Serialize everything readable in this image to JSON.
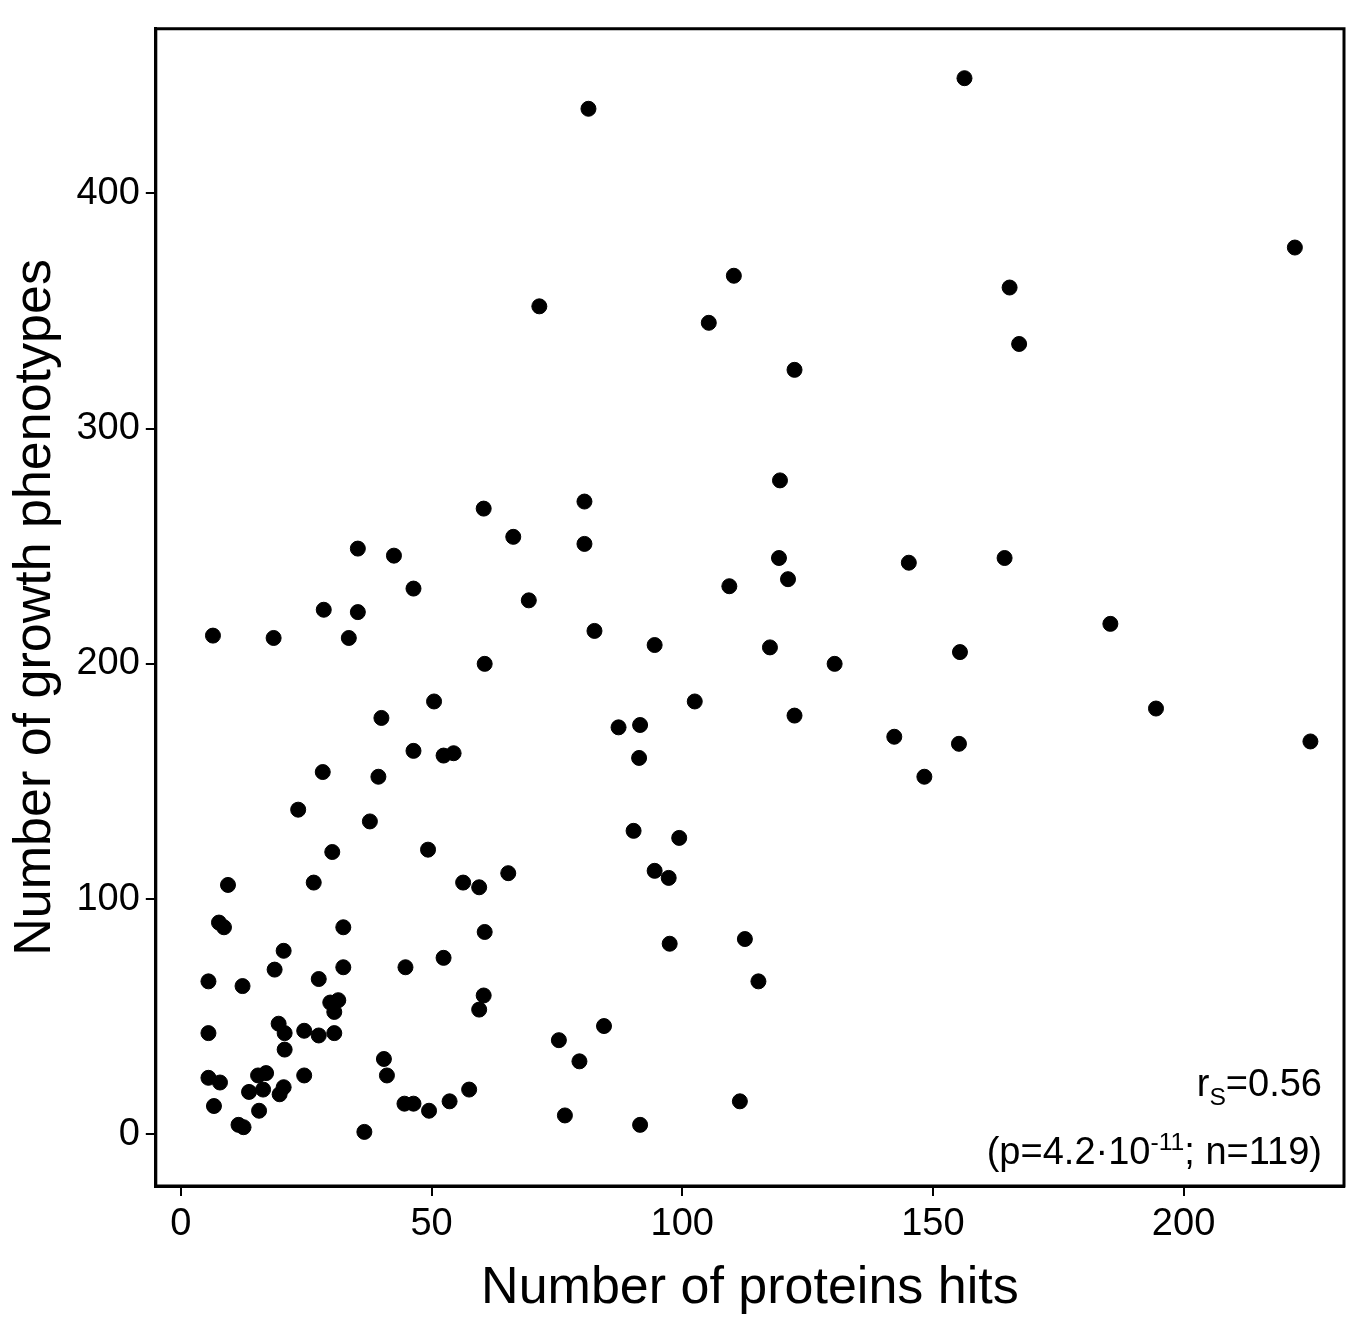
{
  "chart_data": {
    "type": "scatter",
    "xlabel": "Number of proteins hits",
    "ylabel": "Number of growth phenotypes",
    "annotations": [
      "r$_{S}$=0.56",
      "(p=4.2·10$^{-11}$; n=119)"
    ],
    "xlim": [
      -5,
      232
    ],
    "ylim": [
      -22,
      470
    ],
    "xticks": [
      0,
      50,
      100,
      150,
      200
    ],
    "yticks": [
      0,
      100,
      200,
      300,
      400
    ],
    "grid": false,
    "legend": false,
    "marker": "circle",
    "series": [
      {
        "color": "#000000",
        "x": [
          156.3,
          81.3,
          222.2,
          110.3,
          165.3,
          71.5,
          105.3,
          167.2,
          122.4,
          119.5,
          80.5,
          60.4,
          66.3,
          80.5,
          35.3,
          42.5,
          119.3,
          164.3,
          145.2,
          121.1,
          109.4,
          46.4,
          69.4,
          28.5,
          35.3,
          185.4,
          82.5,
          6.4,
          18.5,
          33.5,
          94.5,
          117.5,
          155.4,
          60.6,
          130.4,
          50.5,
          102.5,
          194.5,
          122.4,
          40.0,
          87.3,
          91.6,
          142.3,
          225.3,
          155.2,
          46.4,
          52.4,
          54.4,
          91.4,
          28.3,
          39.4,
          148.3,
          23.4,
          37.7,
          90.3,
          99.4,
          30.2,
          49.3,
          94.5,
          65.3,
          56.3,
          26.5,
          9.4,
          59.5,
          97.3,
          7.6,
          8.6,
          32.4,
          60.6,
          112.5,
          97.5,
          20.5,
          52.4,
          44.8,
          32.4,
          18.7,
          27.5,
          5.5,
          115.2,
          12.3,
          60.4,
          31.4,
          29.8,
          59.5,
          30.6,
          19.5,
          84.4,
          24.6,
          5.5,
          20.7,
          30.6,
          27.5,
          75.4,
          20.7,
          40.5,
          79.5,
          17.0,
          15.4,
          24.6,
          41.1,
          5.5,
          7.8,
          20.5,
          16.4,
          57.5,
          13.6,
          19.7,
          6.6,
          15.6,
          44.6,
          46.4,
          53.6,
          111.5,
          49.5,
          76.6,
          11.5,
          12.5,
          91.6,
          36.6
        ],
        "values": [
          449,
          436,
          377,
          365,
          360,
          352,
          345,
          336,
          325,
          278,
          269,
          266,
          254,
          251,
          249,
          246,
          245,
          245,
          243,
          236,
          233,
          232,
          227,
          223,
          222,
          217,
          214,
          212,
          211,
          211,
          208,
          207,
          205,
          200,
          200,
          184,
          184,
          181,
          178,
          177,
          173,
          174,
          169,
          167,
          166,
          163,
          161,
          162,
          160,
          154,
          152,
          152,
          138,
          133,
          129,
          126,
          120,
          121,
          112,
          111,
          107,
          107,
          106,
          105,
          109,
          90,
          88,
          88,
          86,
          83,
          81,
          78,
          75,
          71,
          71,
          70,
          66,
          65,
          65,
          63,
          59,
          57,
          56,
          53,
          52,
          47,
          46,
          44,
          43,
          43,
          43,
          42,
          40,
          36,
          32,
          31,
          26,
          25,
          25,
          25,
          24,
          22,
          20,
          19,
          19,
          18,
          17,
          12,
          10,
          13,
          13,
          14,
          14,
          10,
          8,
          4,
          3,
          4,
          1
        ]
      }
    ]
  }
}
